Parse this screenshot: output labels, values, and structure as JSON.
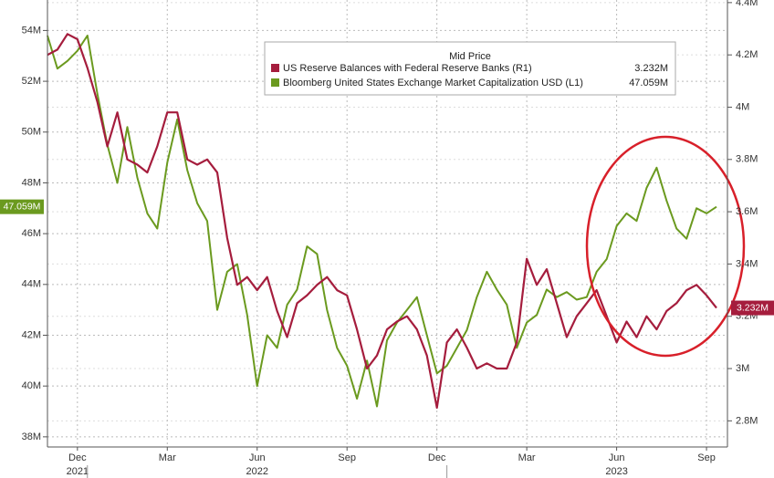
{
  "chart_data": {
    "type": "line",
    "legend_title": "Mid Price",
    "grid": true,
    "categories": [
      null,
      null,
      null,
      "Dec",
      null,
      null,
      null,
      null,
      null,
      null,
      null,
      null,
      "Mar",
      null,
      null,
      null,
      null,
      null,
      null,
      null,
      null,
      "Jun",
      null,
      null,
      null,
      null,
      null,
      null,
      null,
      null,
      "Sep",
      null,
      null,
      null,
      null,
      null,
      null,
      null,
      null,
      "Dec",
      null,
      null,
      null,
      null,
      null,
      null,
      null,
      null,
      "Mar",
      null,
      null,
      null,
      null,
      null,
      null,
      null,
      null,
      "Jun",
      null,
      null,
      null,
      null,
      null,
      null,
      null,
      null,
      "Sep",
      null
    ],
    "year_labels": [
      "2021",
      "2022",
      "2023"
    ],
    "ylim": [
      37.6,
      55.2
    ],
    "yticks": [
      {
        "value": 38,
        "label": "38M"
      },
      {
        "value": 40,
        "label": "40M"
      },
      {
        "value": 42,
        "label": "42M"
      },
      {
        "value": 44,
        "label": "44M"
      },
      {
        "value": 46,
        "label": "46M"
      },
      {
        "value": 48,
        "label": "48M"
      },
      {
        "value": 50,
        "label": "50M"
      },
      {
        "value": 52,
        "label": "52M"
      },
      {
        "value": 54,
        "label": "54M"
      }
    ],
    "y2lim": [
      2.7,
      4.41
    ],
    "y2ticks": [
      {
        "value": 2.8,
        "label": "2.8M"
      },
      {
        "value": 3,
        "label": "3M"
      },
      {
        "value": 3.2,
        "label": "3.2M"
      },
      {
        "value": 3.4,
        "label": "3.4M"
      },
      {
        "value": 3.6,
        "label": "3.6M"
      },
      {
        "value": 3.8,
        "label": "3.8M"
      },
      {
        "value": 4,
        "label": "4M"
      },
      {
        "value": 4.2,
        "label": "4.2M"
      },
      {
        "value": 4.4,
        "label": "4.4M"
      }
    ],
    "series": [
      {
        "name": "US Reserve Balances with Federal Reserve Banks  (R1)",
        "color": "#a51d3d",
        "axis": "y2",
        "last_label": "3.232M",
        "values": [
          4.2,
          4.22,
          4.28,
          4.26,
          4.15,
          4.02,
          3.85,
          3.98,
          3.8,
          3.78,
          3.75,
          3.85,
          3.98,
          3.98,
          3.8,
          3.78,
          3.8,
          3.75,
          3.5,
          3.32,
          3.35,
          3.3,
          3.35,
          3.22,
          3.12,
          3.25,
          3.28,
          3.32,
          3.35,
          3.3,
          3.28,
          3.15,
          3.0,
          3.05,
          3.15,
          3.18,
          3.2,
          3.15,
          3.05,
          2.85,
          3.1,
          3.15,
          3.08,
          3.0,
          3.02,
          3.0,
          3.0,
          3.1,
          3.42,
          3.32,
          3.38,
          3.25,
          3.12,
          3.2,
          3.25,
          3.3,
          3.2,
          3.1,
          3.18,
          3.12,
          3.2,
          3.15,
          3.22,
          3.25,
          3.3,
          3.32,
          3.28,
          3.232
        ]
      },
      {
        "name": "Bloomberg United States Exchange Market Capitalization USD  (L1)",
        "color": "#6b9a1f",
        "axis": "y",
        "last_label": "47.059M",
        "values": [
          53.8,
          52.5,
          52.8,
          53.2,
          53.8,
          51.5,
          49.5,
          48.0,
          50.2,
          48.2,
          46.8,
          46.2,
          48.8,
          50.5,
          48.5,
          47.2,
          46.5,
          43.0,
          44.5,
          44.8,
          42.8,
          40.0,
          42.0,
          41.5,
          43.2,
          43.8,
          45.5,
          45.2,
          43.0,
          41.5,
          40.8,
          39.5,
          41.0,
          39.2,
          41.8,
          42.5,
          43.0,
          43.5,
          42.0,
          40.5,
          40.8,
          41.5,
          42.2,
          43.5,
          44.5,
          43.8,
          43.2,
          41.5,
          42.5,
          42.8,
          43.8,
          43.5,
          43.7,
          43.4,
          43.5,
          44.5,
          45.0,
          46.3,
          46.8,
          46.5,
          47.8,
          48.6,
          47.3,
          46.2,
          45.8,
          47.0,
          46.8,
          47.059
        ]
      }
    ]
  }
}
